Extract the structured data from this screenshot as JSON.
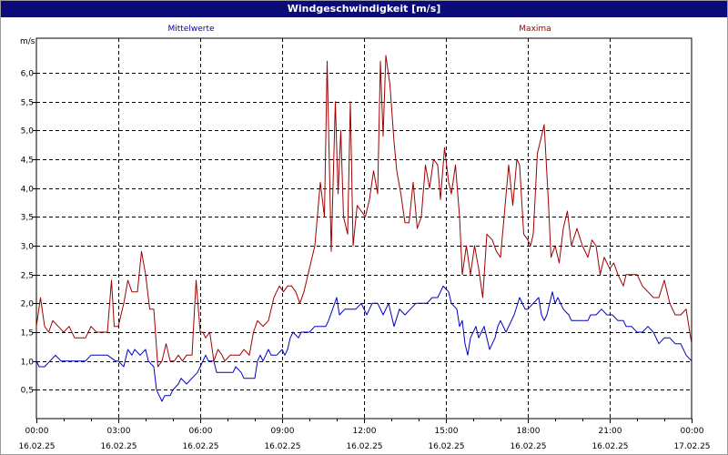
{
  "window": {
    "title": "Windgeschwindigkeit [m/s]"
  },
  "chart_data": {
    "type": "line",
    "title": "Windgeschwindigkeit [m/s]",
    "ylabel": "m/s",
    "xlabel": "",
    "ylim": [
      0,
      6.6
    ],
    "xlim": [
      0,
      24
    ],
    "grid": true,
    "legend": "top",
    "y_ticks": [
      "0,5",
      "1,0",
      "1,5",
      "2,0",
      "2,5",
      "3,0",
      "3,5",
      "4,0",
      "4,5",
      "5,0",
      "5,5",
      "6,0"
    ],
    "y_tick_values": [
      0.5,
      1.0,
      1.5,
      2.0,
      2.5,
      3.0,
      3.5,
      4.0,
      4.5,
      5.0,
      5.5,
      6.0
    ],
    "x_tick_values": [
      0,
      3,
      6,
      9,
      12,
      15,
      18,
      21,
      24
    ],
    "x_tick_times": [
      "00:00",
      "03:00",
      "06:00",
      "09:00",
      "12:00",
      "15:00",
      "18:00",
      "21:00",
      "00:00"
    ],
    "x_tick_dates": [
      "16.02.25",
      "16.02.25",
      "16.02.25",
      "16.02.25",
      "16.02.25",
      "16.02.25",
      "16.02.25",
      "16.02.25",
      "17.02.25"
    ],
    "series": [
      {
        "name": "Mittelwerte",
        "color": "#0000c0",
        "points": [
          [
            0.0,
            1.0
          ],
          [
            0.1,
            0.9
          ],
          [
            0.3,
            0.9
          ],
          [
            0.5,
            1.0
          ],
          [
            0.7,
            1.1
          ],
          [
            0.9,
            1.0
          ],
          [
            1.2,
            1.0
          ],
          [
            1.5,
            1.0
          ],
          [
            1.8,
            1.0
          ],
          [
            2.0,
            1.1
          ],
          [
            2.3,
            1.1
          ],
          [
            2.6,
            1.1
          ],
          [
            2.9,
            1.0
          ],
          [
            3.0,
            1.0
          ],
          [
            3.2,
            0.9
          ],
          [
            3.35,
            1.2
          ],
          [
            3.5,
            1.1
          ],
          [
            3.6,
            1.2
          ],
          [
            3.8,
            1.1
          ],
          [
            4.0,
            1.2
          ],
          [
            4.1,
            1.0
          ],
          [
            4.3,
            0.9
          ],
          [
            4.4,
            0.5
          ],
          [
            4.5,
            0.4
          ],
          [
            4.6,
            0.3
          ],
          [
            4.7,
            0.4
          ],
          [
            4.9,
            0.4
          ],
          [
            5.0,
            0.5
          ],
          [
            5.2,
            0.6
          ],
          [
            5.3,
            0.7
          ],
          [
            5.5,
            0.6
          ],
          [
            5.7,
            0.7
          ],
          [
            5.9,
            0.8
          ],
          [
            6.0,
            0.9
          ],
          [
            6.1,
            1.0
          ],
          [
            6.2,
            1.1
          ],
          [
            6.3,
            1.0
          ],
          [
            6.4,
            1.0
          ],
          [
            6.5,
            1.0
          ],
          [
            6.6,
            0.8
          ],
          [
            6.8,
            0.8
          ],
          [
            7.0,
            0.8
          ],
          [
            7.2,
            0.8
          ],
          [
            7.3,
            0.9
          ],
          [
            7.5,
            0.8
          ],
          [
            7.6,
            0.7
          ],
          [
            7.8,
            0.7
          ],
          [
            8.0,
            0.7
          ],
          [
            8.1,
            1.0
          ],
          [
            8.2,
            1.1
          ],
          [
            8.3,
            1.0
          ],
          [
            8.4,
            1.1
          ],
          [
            8.5,
            1.2
          ],
          [
            8.6,
            1.1
          ],
          [
            8.8,
            1.1
          ],
          [
            9.0,
            1.2
          ],
          [
            9.1,
            1.1
          ],
          [
            9.2,
            1.2
          ],
          [
            9.3,
            1.4
          ],
          [
            9.4,
            1.5
          ],
          [
            9.6,
            1.4
          ],
          [
            9.7,
            1.5
          ],
          [
            9.8,
            1.5
          ],
          [
            10.0,
            1.5
          ],
          [
            10.2,
            1.6
          ],
          [
            10.4,
            1.6
          ],
          [
            10.6,
            1.6
          ],
          [
            10.7,
            1.7
          ],
          [
            11.0,
            2.1
          ],
          [
            11.1,
            1.8
          ],
          [
            11.3,
            1.9
          ],
          [
            11.5,
            1.9
          ],
          [
            11.7,
            1.9
          ],
          [
            11.9,
            2.0
          ],
          [
            12.1,
            1.8
          ],
          [
            12.3,
            2.0
          ],
          [
            12.5,
            2.0
          ],
          [
            12.7,
            1.8
          ],
          [
            12.9,
            2.0
          ],
          [
            13.1,
            1.6
          ],
          [
            13.3,
            1.9
          ],
          [
            13.5,
            1.8
          ],
          [
            13.7,
            1.9
          ],
          [
            13.9,
            2.0
          ],
          [
            14.1,
            2.0
          ],
          [
            14.3,
            2.0
          ],
          [
            14.5,
            2.1
          ],
          [
            14.7,
            2.1
          ],
          [
            14.9,
            2.3
          ],
          [
            15.1,
            2.2
          ],
          [
            15.2,
            2.0
          ],
          [
            15.4,
            1.9
          ],
          [
            15.5,
            1.6
          ],
          [
            15.6,
            1.7
          ],
          [
            15.7,
            1.3
          ],
          [
            15.8,
            1.1
          ],
          [
            15.9,
            1.4
          ],
          [
            16.1,
            1.6
          ],
          [
            16.2,
            1.4
          ],
          [
            16.3,
            1.5
          ],
          [
            16.4,
            1.6
          ],
          [
            16.6,
            1.2
          ],
          [
            16.7,
            1.3
          ],
          [
            16.8,
            1.4
          ],
          [
            16.9,
            1.6
          ],
          [
            17.0,
            1.7
          ],
          [
            17.2,
            1.5
          ],
          [
            17.3,
            1.6
          ],
          [
            17.5,
            1.8
          ],
          [
            17.7,
            2.1
          ],
          [
            17.9,
            1.9
          ],
          [
            18.0,
            1.9
          ],
          [
            18.2,
            2.0
          ],
          [
            18.4,
            2.1
          ],
          [
            18.5,
            1.8
          ],
          [
            18.6,
            1.7
          ],
          [
            18.7,
            1.8
          ],
          [
            18.9,
            2.2
          ],
          [
            19.0,
            2.0
          ],
          [
            19.1,
            2.1
          ],
          [
            19.3,
            1.9
          ],
          [
            19.5,
            1.8
          ],
          [
            19.6,
            1.7
          ],
          [
            19.8,
            1.7
          ],
          [
            20.0,
            1.7
          ],
          [
            20.2,
            1.7
          ],
          [
            20.3,
            1.8
          ],
          [
            20.5,
            1.8
          ],
          [
            20.7,
            1.9
          ],
          [
            20.9,
            1.8
          ],
          [
            21.1,
            1.8
          ],
          [
            21.3,
            1.7
          ],
          [
            21.5,
            1.7
          ],
          [
            21.6,
            1.6
          ],
          [
            21.8,
            1.6
          ],
          [
            22.0,
            1.5
          ],
          [
            22.2,
            1.5
          ],
          [
            22.4,
            1.6
          ],
          [
            22.6,
            1.5
          ],
          [
            22.8,
            1.3
          ],
          [
            23.0,
            1.4
          ],
          [
            23.2,
            1.4
          ],
          [
            23.4,
            1.3
          ],
          [
            23.6,
            1.3
          ],
          [
            23.8,
            1.1
          ],
          [
            24.0,
            1.0
          ]
        ]
      },
      {
        "name": "Maxima",
        "color": "#a00000",
        "points": [
          [
            0.0,
            1.6
          ],
          [
            0.15,
            2.1
          ],
          [
            0.3,
            1.6
          ],
          [
            0.45,
            1.5
          ],
          [
            0.6,
            1.7
          ],
          [
            0.8,
            1.6
          ],
          [
            1.0,
            1.5
          ],
          [
            1.2,
            1.6
          ],
          [
            1.4,
            1.4
          ],
          [
            1.6,
            1.4
          ],
          [
            1.8,
            1.4
          ],
          [
            2.0,
            1.6
          ],
          [
            2.2,
            1.5
          ],
          [
            2.4,
            1.5
          ],
          [
            2.6,
            1.5
          ],
          [
            2.75,
            2.4
          ],
          [
            2.85,
            1.6
          ],
          [
            3.0,
            1.6
          ],
          [
            3.2,
            2.0
          ],
          [
            3.35,
            2.4
          ],
          [
            3.5,
            2.2
          ],
          [
            3.7,
            2.2
          ],
          [
            3.85,
            2.9
          ],
          [
            4.0,
            2.5
          ],
          [
            4.15,
            1.9
          ],
          [
            4.3,
            1.9
          ],
          [
            4.45,
            0.9
          ],
          [
            4.6,
            1.0
          ],
          [
            4.75,
            1.3
          ],
          [
            4.9,
            1.0
          ],
          [
            5.05,
            1.0
          ],
          [
            5.2,
            1.1
          ],
          [
            5.35,
            1.0
          ],
          [
            5.5,
            1.1
          ],
          [
            5.7,
            1.1
          ],
          [
            5.85,
            2.4
          ],
          [
            6.0,
            1.5
          ],
          [
            6.1,
            1.5
          ],
          [
            6.2,
            1.4
          ],
          [
            6.35,
            1.5
          ],
          [
            6.5,
            1.0
          ],
          [
            6.65,
            1.2
          ],
          [
            6.8,
            1.1
          ],
          [
            6.9,
            1.0
          ],
          [
            7.1,
            1.1
          ],
          [
            7.3,
            1.1
          ],
          [
            7.45,
            1.1
          ],
          [
            7.6,
            1.2
          ],
          [
            7.8,
            1.1
          ],
          [
            7.95,
            1.5
          ],
          [
            8.1,
            1.7
          ],
          [
            8.3,
            1.6
          ],
          [
            8.5,
            1.7
          ],
          [
            8.7,
            2.1
          ],
          [
            8.9,
            2.3
          ],
          [
            9.05,
            2.2
          ],
          [
            9.2,
            2.3
          ],
          [
            9.35,
            2.3
          ],
          [
            9.5,
            2.2
          ],
          [
            9.65,
            2.0
          ],
          [
            9.8,
            2.2
          ],
          [
            10.0,
            2.6
          ],
          [
            10.2,
            3.0
          ],
          [
            10.4,
            4.1
          ],
          [
            10.55,
            3.5
          ],
          [
            10.65,
            6.2
          ],
          [
            10.8,
            2.9
          ],
          [
            10.95,
            5.5
          ],
          [
            11.05,
            3.9
          ],
          [
            11.15,
            5.0
          ],
          [
            11.25,
            3.5
          ],
          [
            11.4,
            3.2
          ],
          [
            11.5,
            5.5
          ],
          [
            11.6,
            3.0
          ],
          [
            11.75,
            3.7
          ],
          [
            11.9,
            3.6
          ],
          [
            12.05,
            3.5
          ],
          [
            12.2,
            3.8
          ],
          [
            12.35,
            4.3
          ],
          [
            12.5,
            3.9
          ],
          [
            12.6,
            6.2
          ],
          [
            12.7,
            4.9
          ],
          [
            12.8,
            6.3
          ],
          [
            12.95,
            5.8
          ],
          [
            13.1,
            4.8
          ],
          [
            13.2,
            4.3
          ],
          [
            13.35,
            3.9
          ],
          [
            13.5,
            3.4
          ],
          [
            13.65,
            3.4
          ],
          [
            13.8,
            4.1
          ],
          [
            13.95,
            3.3
          ],
          [
            14.1,
            3.5
          ],
          [
            14.25,
            4.4
          ],
          [
            14.4,
            4.0
          ],
          [
            14.55,
            4.5
          ],
          [
            14.7,
            4.4
          ],
          [
            14.8,
            3.8
          ],
          [
            14.95,
            4.7
          ],
          [
            15.1,
            4.1
          ],
          [
            15.2,
            3.9
          ],
          [
            15.35,
            4.4
          ],
          [
            15.5,
            3.5
          ],
          [
            15.6,
            2.5
          ],
          [
            15.75,
            3.0
          ],
          [
            15.9,
            2.5
          ],
          [
            16.05,
            3.0
          ],
          [
            16.2,
            2.6
          ],
          [
            16.35,
            2.1
          ],
          [
            16.5,
            3.2
          ],
          [
            16.7,
            3.1
          ],
          [
            16.85,
            2.9
          ],
          [
            17.0,
            2.8
          ],
          [
            17.15,
            3.6
          ],
          [
            17.3,
            4.4
          ],
          [
            17.45,
            3.7
          ],
          [
            17.6,
            4.5
          ],
          [
            17.7,
            4.4
          ],
          [
            17.85,
            3.2
          ],
          [
            18.0,
            3.1
          ],
          [
            18.1,
            3.0
          ],
          [
            18.2,
            3.2
          ],
          [
            18.35,
            4.6
          ],
          [
            18.5,
            4.9
          ],
          [
            18.6,
            5.1
          ],
          [
            18.75,
            3.8
          ],
          [
            18.85,
            2.8
          ],
          [
            19.0,
            3.0
          ],
          [
            19.15,
            2.7
          ],
          [
            19.3,
            3.3
          ],
          [
            19.45,
            3.6
          ],
          [
            19.6,
            3.0
          ],
          [
            19.8,
            3.3
          ],
          [
            20.0,
            3.0
          ],
          [
            20.2,
            2.8
          ],
          [
            20.35,
            3.1
          ],
          [
            20.5,
            3.0
          ],
          [
            20.65,
            2.5
          ],
          [
            20.8,
            2.8
          ],
          [
            21.0,
            2.6
          ],
          [
            21.15,
            2.7
          ],
          [
            21.3,
            2.5
          ],
          [
            21.5,
            2.3
          ],
          [
            21.6,
            2.5
          ],
          [
            21.8,
            2.5
          ],
          [
            22.0,
            2.5
          ],
          [
            22.2,
            2.3
          ],
          [
            22.4,
            2.2
          ],
          [
            22.6,
            2.1
          ],
          [
            22.8,
            2.1
          ],
          [
            23.0,
            2.4
          ],
          [
            23.2,
            2.0
          ],
          [
            23.4,
            1.8
          ],
          [
            23.6,
            1.8
          ],
          [
            23.8,
            1.9
          ],
          [
            24.0,
            1.3
          ]
        ]
      }
    ]
  }
}
